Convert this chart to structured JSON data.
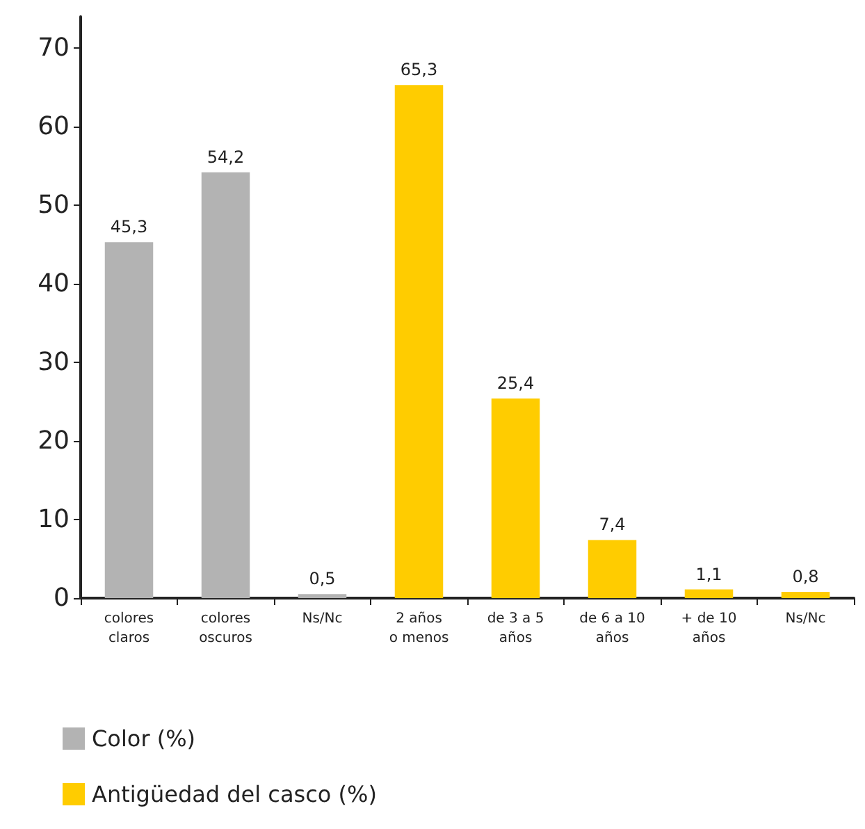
{
  "chart_data": {
    "type": "bar",
    "categories": [
      "colores\nclaros",
      "colores\noscuros",
      "Ns/Nc",
      "2 años\no menos",
      "de 3 a 5\naños",
      "de 6 a 10\naños",
      "+ de 10\naños",
      "Ns/Nc"
    ],
    "series": [
      {
        "name": "Color (%)",
        "color": "#b3b3b3",
        "values": [
          45.3,
          54.2,
          0.5,
          null,
          null,
          null,
          null,
          null
        ],
        "value_labels": [
          "45,3",
          "54,2",
          "0,5",
          null,
          null,
          null,
          null,
          null
        ]
      },
      {
        "name": "Antigüedad del casco (%)",
        "color": "#ffcc00",
        "values": [
          null,
          null,
          null,
          65.3,
          25.4,
          7.4,
          1.1,
          0.8
        ],
        "value_labels": [
          null,
          null,
          null,
          "65,3",
          "25,4",
          "7,4",
          "1,1",
          "0,8"
        ]
      }
    ],
    "ylim": [
      0,
      74
    ],
    "yticks": [
      0,
      10,
      20,
      30,
      40,
      50,
      60,
      70
    ],
    "grid": false,
    "legend": "bottom left"
  }
}
